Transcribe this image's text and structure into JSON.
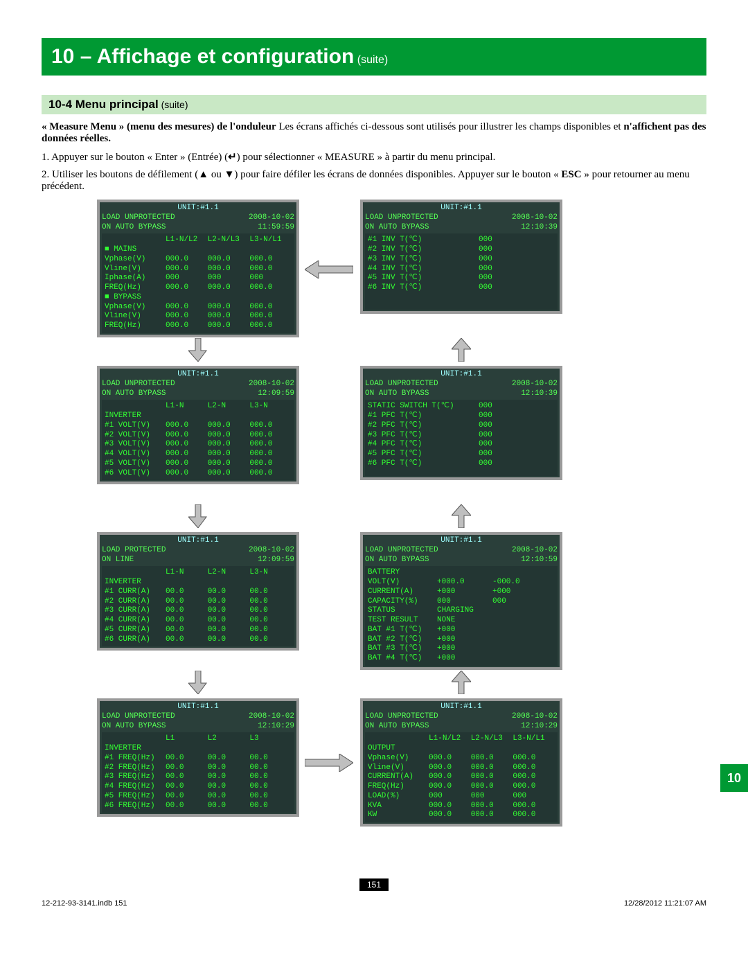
{
  "title": {
    "main": "10 – Affichage et configuration",
    "suffix": "(suite)"
  },
  "subhead": {
    "num": "10-4 ",
    "label": "Menu principal",
    "suffix": " (suite)"
  },
  "intro": {
    "bold1": "« Measure Menu » (menu des mesures) de l'onduleur",
    "rest1": "  Les écrans affichés ci-dessous sont utilisés pour illustrer les champs disponibles et",
    "bold2": "n'affichent pas des données réelles."
  },
  "steps": {
    "s1a": "1. Appuyer sur le bouton « Enter » (Entrée) (",
    "s1b": ") pour sélectionner « MEASURE » à partir du menu principal.",
    "s2a": "2. Utiliser les boutons de défilement (",
    "s2b": " ou ",
    "s2c": ") pour faire défiler les écrans de données disponibles.  Appuyer sur le bouton « ",
    "esc": "ESC",
    "s2d": " » pour retourner au menu précédent."
  },
  "hdr": {
    "unit": "UNIT:#1.1",
    "load_unprot": "LOAD UNPROTECTED",
    "load_prot": "LOAD PROTECTED",
    "auto_bypass": "ON AUTO BYPASS",
    "online": "ON LINE"
  },
  "mains": {
    "date": "2008-10-02",
    "time": "11:59:59",
    "colh": [
      "L1-N/L2",
      "L2-N/L3",
      "L3-N/L1"
    ],
    "rows": [
      [
        "■ MAINS",
        "",
        "",
        ""
      ],
      [
        "Vphase(V)",
        "000.0",
        "000.0",
        "000.0"
      ],
      [
        "Vline(V)",
        "000.0",
        "000.0",
        "000.0"
      ],
      [
        "Iphase(A)",
        "000",
        "000",
        "000"
      ],
      [
        "FREQ(Hz)",
        "000.0",
        "000.0",
        "000.0"
      ],
      [
        "■ BYPASS",
        "",
        "",
        ""
      ],
      [
        "Vphase(V)",
        "000.0",
        "000.0",
        "000.0"
      ],
      [
        "Vline(V)",
        "000.0",
        "000.0",
        "000.0"
      ],
      [
        "FREQ(Hz)",
        "000.0",
        "000.0",
        "000.0"
      ]
    ]
  },
  "invvolt": {
    "date": "2008-10-02",
    "time": "12:09:59",
    "colh": [
      "L1-N",
      "L2-N",
      "L3-N"
    ],
    "rows": [
      [
        "INVERTER",
        "",
        "",
        ""
      ],
      [
        "#1 VOLT(V)",
        "000.0",
        "000.0",
        "000.0"
      ],
      [
        "#2 VOLT(V)",
        "000.0",
        "000.0",
        "000.0"
      ],
      [
        "#3 VOLT(V)",
        "000.0",
        "000.0",
        "000.0"
      ],
      [
        "#4 VOLT(V)",
        "000.0",
        "000.0",
        "000.0"
      ],
      [
        "#5 VOLT(V)",
        "000.0",
        "000.0",
        "000.0"
      ],
      [
        "#6 VOLT(V)",
        "000.0",
        "000.0",
        "000.0"
      ]
    ]
  },
  "invcurr": {
    "date": "2008-10-02",
    "time": "12:09:59",
    "colh": [
      "L1-N",
      "L2-N",
      "L3-N"
    ],
    "rows": [
      [
        "INVERTER",
        "",
        "",
        ""
      ],
      [
        "#1 CURR(A)",
        "00.0",
        "00.0",
        "00.0"
      ],
      [
        "#2 CURR(A)",
        "00.0",
        "00.0",
        "00.0"
      ],
      [
        "#3 CURR(A)",
        "00.0",
        "00.0",
        "00.0"
      ],
      [
        "#4 CURR(A)",
        "00.0",
        "00.0",
        "00.0"
      ],
      [
        "#5 CURR(A)",
        "00.0",
        "00.0",
        "00.0"
      ],
      [
        "#6 CURR(A)",
        "00.0",
        "00.0",
        "00.0"
      ]
    ]
  },
  "invfreq": {
    "date": "2008-10-02",
    "time": "12:10:29",
    "colh": [
      "L1",
      "L2",
      "L3"
    ],
    "rows": [
      [
        "INVERTER",
        "",
        "",
        ""
      ],
      [
        "#1 FREQ(Hz)",
        "00.0",
        "00.0",
        "00.0"
      ],
      [
        "#2 FREQ(Hz)",
        "00.0",
        "00.0",
        "00.0"
      ],
      [
        "#3 FREQ(Hz)",
        "00.0",
        "00.0",
        "00.0"
      ],
      [
        "#4 FREQ(Hz)",
        "00.0",
        "00.0",
        "00.0"
      ],
      [
        "#5 FREQ(Hz)",
        "00.0",
        "00.0",
        "00.0"
      ],
      [
        "#6 FREQ(Hz)",
        "00.0",
        "00.0",
        "00.0"
      ]
    ]
  },
  "invtemp": {
    "date": "2008-10-02",
    "time": "12:10:39",
    "rows": [
      [
        "#1 INV T(℃)",
        "000"
      ],
      [
        "#2 INV T(℃)",
        "000"
      ],
      [
        "#3 INV T(℃)",
        "000"
      ],
      [
        "#4 INV T(℃)",
        "000"
      ],
      [
        "#5 INV T(℃)",
        "000"
      ],
      [
        "#6 INV T(℃)",
        "000"
      ]
    ]
  },
  "pfctemp": {
    "date": "2008-10-02",
    "time": "12:10:39",
    "rows": [
      [
        "STATIC SWITCH T(℃)",
        "000"
      ],
      [
        "",
        ""
      ],
      [
        "#1 PFC T(℃)",
        "000"
      ],
      [
        "#2 PFC T(℃)",
        "000"
      ],
      [
        "#3 PFC T(℃)",
        "000"
      ],
      [
        "#4 PFC T(℃)",
        "000"
      ],
      [
        "#5 PFC T(℃)",
        "000"
      ],
      [
        "#6 PFC T(℃)",
        "000"
      ]
    ]
  },
  "battery": {
    "date": "2008-10-02",
    "time": "12:10:59",
    "rows": [
      [
        "BATTERY",
        "",
        ""
      ],
      [
        "VOLT(V)",
        "+000.0",
        "-000.0"
      ],
      [
        "CURRENT(A)",
        "+000",
        "+000"
      ],
      [
        "CAPACITY(%)",
        "000",
        "000"
      ],
      [
        "STATUS",
        "CHARGING",
        ""
      ],
      [
        "TEST RESULT",
        "NONE",
        ""
      ],
      [
        "BAT #1 T(℃)",
        "+000",
        ""
      ],
      [
        "BAT #2 T(℃)",
        "+000",
        ""
      ],
      [
        "BAT #3 T(℃)",
        "+000",
        ""
      ],
      [
        "BAT #4 T(℃)",
        "+000",
        ""
      ]
    ]
  },
  "output": {
    "date": "2008-10-02",
    "time": "12:10:29",
    "colh": [
      "L1-N/L2",
      "L2-N/L3",
      "L3-N/L1"
    ],
    "rows": [
      [
        "OUTPUT",
        "",
        "",
        ""
      ],
      [
        "Vphase(V)",
        "000.0",
        "000.0",
        "000.0"
      ],
      [
        "Vline(V)",
        "000.0",
        "000.0",
        "000.0"
      ],
      [
        "CURRENT(A)",
        "000.0",
        "000.0",
        "000.0"
      ],
      [
        "FREQ(Hz)",
        "000.0",
        "000.0",
        "000.0"
      ],
      [
        "LOAD(%)",
        "000",
        "000",
        "000"
      ],
      [
        "KVA",
        "000.0",
        "000.0",
        "000.0"
      ],
      [
        "KW",
        "000.0",
        "000.0",
        "000.0"
      ]
    ]
  },
  "page_num": "151",
  "footer": {
    "left": "12-212-93-3141.indb   151",
    "right": "12/28/2012   11:21:07 AM"
  },
  "tab": "10"
}
